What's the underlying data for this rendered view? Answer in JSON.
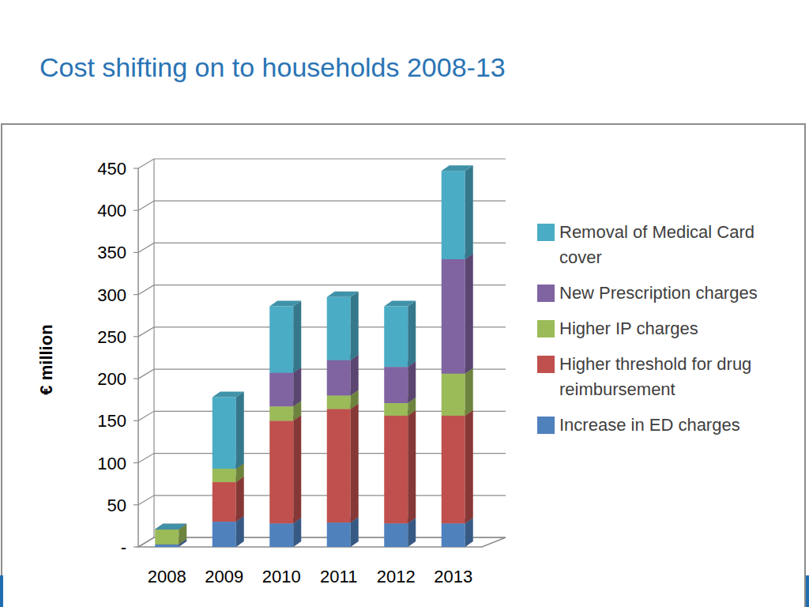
{
  "chart_data": {
    "type": "bar",
    "title": "Cost shifting on to households 2008-13",
    "y_label": "€ million",
    "categories": [
      "2008",
      "2009",
      "2010",
      "2011",
      "2012",
      "2013"
    ],
    "series": [
      {
        "name": "Increase in ED charges",
        "color": "#4f81bd",
        "values": [
          3,
          30,
          28,
          29,
          28,
          28
        ]
      },
      {
        "name": "Higher threshold for drug reimbursement",
        "color": "#c0504d",
        "values": [
          0,
          47,
          122,
          135,
          128,
          128
        ]
      },
      {
        "name": "Higher IP charges",
        "color": "#9bbb59",
        "values": [
          18,
          16,
          17,
          16,
          15,
          50
        ]
      },
      {
        "name": "New Prescription charges",
        "color": "#8064a2",
        "values": [
          0,
          0,
          40,
          42,
          43,
          136
        ]
      },
      {
        "name": "Removal of Medical Card cover",
        "color": "#4bacc6",
        "values": [
          0,
          85,
          79,
          75,
          72,
          105
        ]
      }
    ],
    "ylim": [
      0,
      450
    ],
    "yticks": [
      {
        "value": 0,
        "label": "-"
      },
      50,
      100,
      150,
      200,
      250,
      300,
      350,
      400,
      450
    ],
    "stacked": true,
    "grid": true,
    "legend": "right"
  }
}
